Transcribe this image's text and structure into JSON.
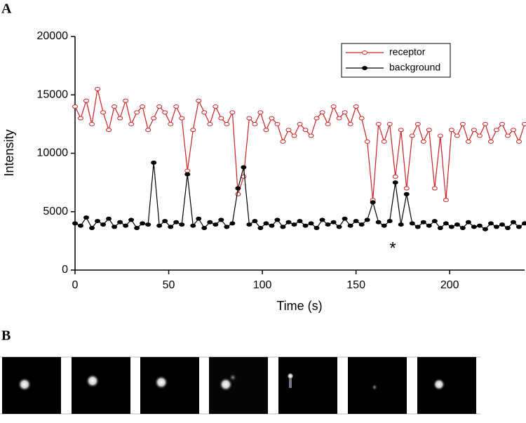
{
  "panels": [
    "A",
    "B"
  ],
  "chart_data": {
    "type": "line",
    "x_label": "Time (s)",
    "y_label": "Intensity",
    "annotation": "*",
    "x": [
      0,
      3,
      6,
      9,
      12,
      15,
      18,
      21,
      24,
      27,
      30,
      33,
      36,
      39,
      42,
      45,
      48,
      51,
      54,
      57,
      60,
      63,
      66,
      69,
      72,
      75,
      78,
      81,
      84,
      87,
      90,
      93,
      96,
      99,
      102,
      105,
      108,
      111,
      114,
      117,
      120,
      123,
      126,
      129,
      132,
      135,
      138,
      141,
      144,
      147,
      150,
      153,
      156,
      159,
      162,
      165,
      168,
      171,
      174,
      177,
      180,
      183,
      186,
      189,
      192,
      195,
      198,
      201,
      204,
      207,
      210,
      213,
      216,
      219,
      222,
      225,
      228,
      231,
      234,
      237,
      240
    ],
    "series": [
      {
        "name": "receptor",
        "color": "#cc2222",
        "marker": "open",
        "values": [
          14000,
          13000,
          14500,
          12500,
          15500,
          13500,
          12000,
          14000,
          13000,
          14500,
          12500,
          13500,
          14000,
          12000,
          13000,
          14000,
          13500,
          12500,
          14000,
          13000,
          8500,
          12000,
          14500,
          13500,
          12500,
          14000,
          13000,
          12500,
          13500,
          6500,
          8000,
          13000,
          12500,
          13500,
          12000,
          13000,
          12500,
          11000,
          12000,
          11500,
          12500,
          12000,
          11500,
          13000,
          13500,
          12500,
          14000,
          13000,
          13500,
          12500,
          14000,
          13000,
          11000,
          6000,
          12500,
          11000,
          12500,
          8000,
          12000,
          7000,
          11500,
          12500,
          11000,
          12000,
          7000,
          11500,
          6000,
          12000,
          11500,
          12500,
          11000,
          12000,
          11500,
          12500,
          11000,
          12000,
          12500,
          11500,
          12000,
          11000,
          12500
        ]
      },
      {
        "name": "background",
        "color": "#000000",
        "marker": "filled",
        "values": [
          4000,
          3800,
          4500,
          3600,
          4200,
          3900,
          4400,
          3700,
          4100,
          3800,
          4300,
          3600,
          4000,
          3900,
          9200,
          3800,
          4200,
          3700,
          4100,
          3900,
          8200,
          3800,
          4400,
          3600,
          4100,
          3900,
          4300,
          3700,
          4000,
          7000,
          8800,
          3900,
          4200,
          3600,
          4000,
          3800,
          4300,
          3700,
          4100,
          3900,
          4200,
          3800,
          4000,
          3600,
          4300,
          3900,
          4100,
          3700,
          4400,
          3800,
          4200,
          3900,
          4300,
          5800,
          4100,
          3800,
          4200,
          7500,
          3900,
          6500,
          4000,
          3700,
          4100,
          3800,
          4200,
          3600,
          4000,
          3700,
          3900,
          3600,
          4100,
          3700,
          3800,
          3500,
          4000,
          3700,
          3900,
          3600,
          4100,
          3700,
          4000
        ]
      }
    ],
    "xlim": [
      0,
      240
    ],
    "xticks": [
      0,
      50,
      100,
      150,
      200
    ],
    "ylim": [
      0,
      20000
    ],
    "yticks": [
      0,
      5000,
      10000,
      15000,
      20000
    ],
    "legend": "upper right"
  }
}
